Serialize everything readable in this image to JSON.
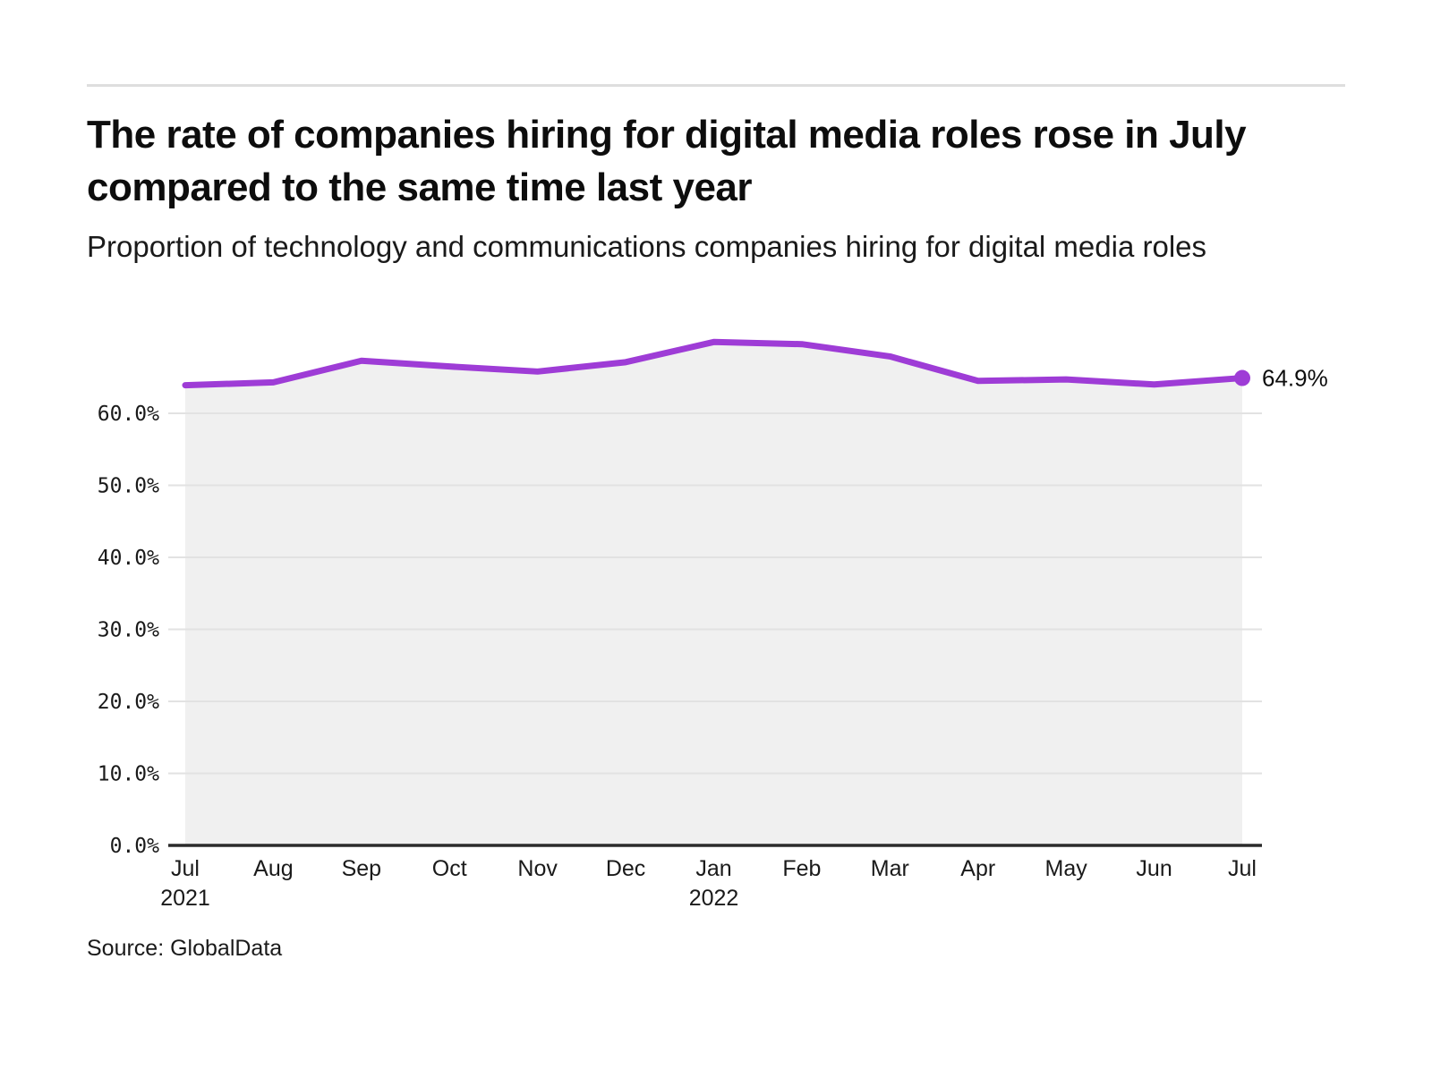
{
  "page": {
    "title": "The rate of companies hiring for digital media roles rose in July compared to the same time last year",
    "subtitle": "Proportion of technology and communications companies hiring for digital media roles",
    "source": "Source: GlobalData"
  },
  "chart_data": {
    "type": "area",
    "title": "The rate of companies hiring for digital media roles rose in July compared to the same time last year",
    "subtitle": "Proportion of technology and communications companies hiring for digital media roles",
    "x_axis": {
      "labels": [
        "Jul",
        "Aug",
        "Sep",
        "Oct",
        "Nov",
        "Dec",
        "Jan",
        "Feb",
        "Mar",
        "Apr",
        "May",
        "Jun",
        "Jul"
      ],
      "sub_labels": [
        {
          "index": 0,
          "text": "2021"
        },
        {
          "index": 6,
          "text": "2022"
        }
      ]
    },
    "y_axis": {
      "ticks": [
        {
          "label": "0.0%",
          "value": 0
        },
        {
          "label": "10.0%",
          "value": 10
        },
        {
          "label": "20.0%",
          "value": 20
        },
        {
          "label": "30.0%",
          "value": 30
        },
        {
          "label": "40.0%",
          "value": 40
        },
        {
          "label": "50.0%",
          "value": 50
        },
        {
          "label": "60.0%",
          "value": 60
        }
      ],
      "ylim": [
        0,
        70
      ]
    },
    "series": [
      {
        "name": "Proportion of technology and communications companies hiring for digital media roles",
        "values": [
          63.9,
          64.3,
          67.3,
          66.5,
          65.8,
          67.1,
          69.9,
          69.6,
          67.9,
          64.5,
          64.7,
          64.0,
          64.9
        ]
      }
    ],
    "end_label": "64.9%",
    "grid": true,
    "legend": "none",
    "colors": {
      "line": "#9e3cd6",
      "area_fill": "#f0f0f0",
      "gridline": "#e2e2e2",
      "baseline": "#2b2b2b",
      "tick_text": "#1a1a1a"
    }
  }
}
